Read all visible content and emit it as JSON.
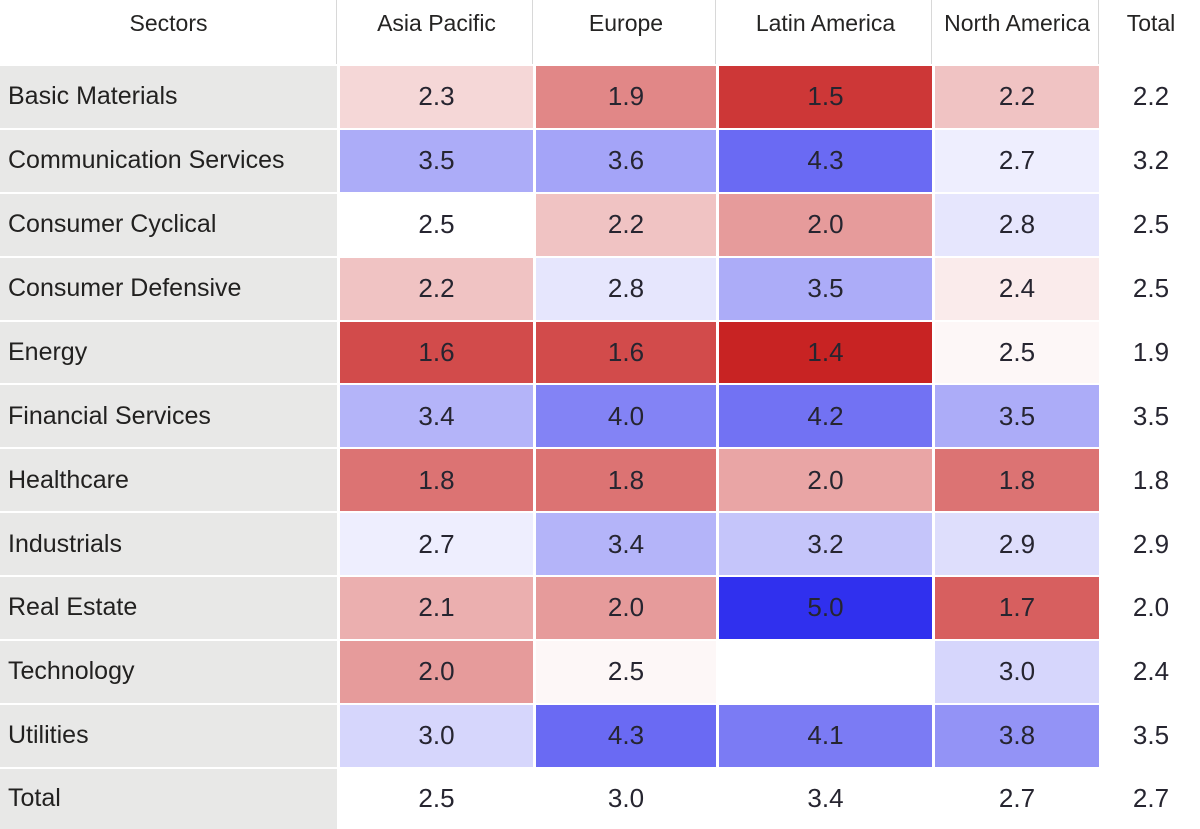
{
  "colors": {
    "row_header_bg": "#e8e8e7",
    "text": "#252423",
    "scale": {
      "min_color": "#c82323",
      "mid_color": "#ffffff",
      "max_color": "#3030ee",
      "min_value": 1.4,
      "mid_value": 2.5,
      "max_value": 5.0
    }
  },
  "table": {
    "header": {
      "sectors": "Sectors",
      "columns": [
        "Asia Pacific",
        "Europe",
        "Latin America",
        "North America",
        "Total"
      ]
    },
    "rows": [
      {
        "sector": "Basic Materials",
        "cells": [
          {
            "text": "2.3",
            "shade": 2.3
          },
          {
            "text": "1.9",
            "shade": 1.9
          },
          {
            "text": "1.5",
            "shade": 1.5
          },
          {
            "text": "2.2",
            "shade": 2.2
          },
          {
            "text": "2.2",
            "shade": null
          }
        ]
      },
      {
        "sector": "Communication Services",
        "cells": [
          {
            "text": "3.5",
            "shade": 3.5
          },
          {
            "text": "3.6",
            "shade": 3.6
          },
          {
            "text": "4.3",
            "shade": 4.3
          },
          {
            "text": "2.7",
            "shade": 2.7
          },
          {
            "text": "3.2",
            "shade": null
          }
        ]
      },
      {
        "sector": "Consumer Cyclical",
        "cells": [
          {
            "text": "2.5",
            "shade": 2.5
          },
          {
            "text": "2.2",
            "shade": 2.2
          },
          {
            "text": "2.0",
            "shade": 2.0
          },
          {
            "text": "2.8",
            "shade": 2.8
          },
          {
            "text": "2.5",
            "shade": null
          }
        ]
      },
      {
        "sector": "Consumer Defensive",
        "cells": [
          {
            "text": "2.2",
            "shade": 2.2
          },
          {
            "text": "2.8",
            "shade": 2.8
          },
          {
            "text": "3.5",
            "shade": 3.5
          },
          {
            "text": "2.4",
            "shade": 2.4
          },
          {
            "text": "2.5",
            "shade": null
          }
        ]
      },
      {
        "sector": "Energy",
        "cells": [
          {
            "text": "1.6",
            "shade": 1.6
          },
          {
            "text": "1.6",
            "shade": 1.6
          },
          {
            "text": "1.4",
            "shade": 1.4
          },
          {
            "text": "2.5",
            "shade": 2.46
          },
          {
            "text": "1.9",
            "shade": null
          }
        ]
      },
      {
        "sector": "Financial Services",
        "cells": [
          {
            "text": "3.4",
            "shade": 3.4
          },
          {
            "text": "4.0",
            "shade": 4.0
          },
          {
            "text": "4.2",
            "shade": 4.2
          },
          {
            "text": "3.5",
            "shade": 3.5
          },
          {
            "text": "3.5",
            "shade": null
          }
        ]
      },
      {
        "sector": "Healthcare",
        "cells": [
          {
            "text": "1.8",
            "shade": 1.8
          },
          {
            "text": "1.8",
            "shade": 1.8
          },
          {
            "text": "2.0",
            "shade": 2.05
          },
          {
            "text": "1.8",
            "shade": 1.8
          },
          {
            "text": "1.8",
            "shade": null
          }
        ]
      },
      {
        "sector": "Industrials",
        "cells": [
          {
            "text": "2.7",
            "shade": 2.7
          },
          {
            "text": "3.4",
            "shade": 3.4
          },
          {
            "text": "3.2",
            "shade": 3.2
          },
          {
            "text": "2.9",
            "shade": 2.9
          },
          {
            "text": "2.9",
            "shade": null
          }
        ]
      },
      {
        "sector": "Real Estate",
        "cells": [
          {
            "text": "2.1",
            "shade": 2.1
          },
          {
            "text": "2.0",
            "shade": 2.0
          },
          {
            "text": "5.0",
            "shade": 5.0
          },
          {
            "text": "1.7",
            "shade": 1.7
          },
          {
            "text": "2.0",
            "shade": null
          }
        ]
      },
      {
        "sector": "Technology",
        "cells": [
          {
            "text": "2.0",
            "shade": 2.0
          },
          {
            "text": "2.5",
            "shade": 2.46
          },
          {
            "text": "",
            "shade": null
          },
          {
            "text": "3.0",
            "shade": 3.0
          },
          {
            "text": "2.4",
            "shade": null
          }
        ]
      },
      {
        "sector": "Utilities",
        "cells": [
          {
            "text": "3.0",
            "shade": 3.0
          },
          {
            "text": "4.3",
            "shade": 4.3
          },
          {
            "text": "4.1",
            "shade": 4.1
          },
          {
            "text": "3.8",
            "shade": 3.8
          },
          {
            "text": "3.5",
            "shade": null
          }
        ]
      },
      {
        "sector": "Total",
        "cells": [
          {
            "text": "2.5",
            "shade": null
          },
          {
            "text": "3.0",
            "shade": null
          },
          {
            "text": "3.4",
            "shade": null
          },
          {
            "text": "2.7",
            "shade": null
          },
          {
            "text": "2.7",
            "shade": null
          }
        ]
      }
    ]
  },
  "chart_data": {
    "type": "heatmap",
    "title": "",
    "row_axis_label": "Sectors",
    "columns": [
      "Asia Pacific",
      "Europe",
      "Latin America",
      "North America"
    ],
    "rows": [
      "Basic Materials",
      "Communication Services",
      "Consumer Cyclical",
      "Consumer Defensive",
      "Energy",
      "Financial Services",
      "Healthcare",
      "Industrials",
      "Real Estate",
      "Technology",
      "Utilities"
    ],
    "values": [
      [
        2.3,
        1.9,
        1.5,
        2.2
      ],
      [
        3.5,
        3.6,
        4.3,
        2.7
      ],
      [
        2.5,
        2.2,
        2.0,
        2.8
      ],
      [
        2.2,
        2.8,
        3.5,
        2.4
      ],
      [
        1.6,
        1.6,
        1.4,
        2.5
      ],
      [
        3.4,
        4.0,
        4.2,
        3.5
      ],
      [
        1.8,
        1.8,
        2.0,
        1.8
      ],
      [
        2.7,
        3.4,
        3.2,
        2.9
      ],
      [
        2.1,
        2.0,
        5.0,
        1.7
      ],
      [
        2.0,
        2.5,
        null,
        3.0
      ],
      [
        3.0,
        4.3,
        4.1,
        3.8
      ]
    ],
    "row_totals": [
      2.2,
      3.2,
      2.5,
      2.5,
      1.9,
      3.5,
      1.8,
      2.9,
      2.0,
      2.4,
      3.5
    ],
    "column_totals": [
      2.5,
      3.0,
      3.4,
      2.7
    ],
    "grand_total": 2.7,
    "color_scale": {
      "low_color": "#c82323",
      "mid_color": "#ffffff",
      "high_color": "#3030ee",
      "low_value": 1.4,
      "mid_value": 2.5,
      "high_value": 5.0
    },
    "legend": "off",
    "grid": "white cell separators"
  }
}
